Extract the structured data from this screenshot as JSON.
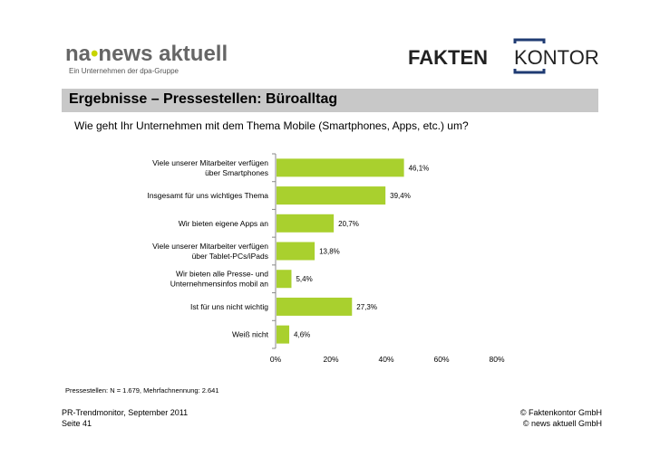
{
  "logos": {
    "na": {
      "brand": "na",
      "name": "news aktuell",
      "tagline": "Ein Unternehmen der dpa-Gruppe"
    },
    "faktenkontor": {
      "part1": "FAKTEN",
      "part2": "KONTOR"
    }
  },
  "header": {
    "title": "Ergebnisse – Pressestellen: Büroalltag",
    "question": "Wie geht Ihr Unternehmen mit dem Thema Mobile (Smartphones, Apps, etc.) um?"
  },
  "colors": {
    "bar": "#a9d02e",
    "title_bar": "#c8c8c8",
    "na_dot": "#c8d400",
    "fk_bracket": "#1f3b73"
  },
  "chart_data": {
    "type": "bar",
    "orientation": "horizontal",
    "categories": [
      [
        "Viele unserer Mitarbeiter verfügen",
        "über Smartphones"
      ],
      [
        "Insgesamt für uns wichtiges Thema"
      ],
      [
        "Wir bieten eigene Apps an"
      ],
      [
        "Viele unserer Mitarbeiter verfügen",
        "über Tablet-PCs/iPads"
      ],
      [
        "Wir bieten alle Presse- und",
        "Unternehmensinfos mobil an"
      ],
      [
        "Ist für uns nicht wichtig"
      ],
      [
        "Weiß nicht"
      ]
    ],
    "values": [
      46.1,
      39.4,
      20.7,
      13.8,
      5.4,
      27.3,
      4.6
    ],
    "value_labels": [
      "46,1%",
      "39,4%",
      "20,7%",
      "13,8%",
      "5,4%",
      "27,3%",
      "4,6%"
    ],
    "xlim": [
      0,
      80
    ],
    "ticks": [
      "0%",
      "20%",
      "40%",
      "60%",
      "80%"
    ],
    "tick_values": [
      0,
      20,
      40,
      60,
      80
    ]
  },
  "footnote": "Pressestellen: N = 1.679, Mehrfachnennung: 2.641",
  "footer": {
    "left_line1": "PR-Trendmonitor, September 2011",
    "left_line2": "Seite 41",
    "right_line1": "© Faktenkontor GmbH",
    "right_line2": "© news aktuell GmbH"
  }
}
